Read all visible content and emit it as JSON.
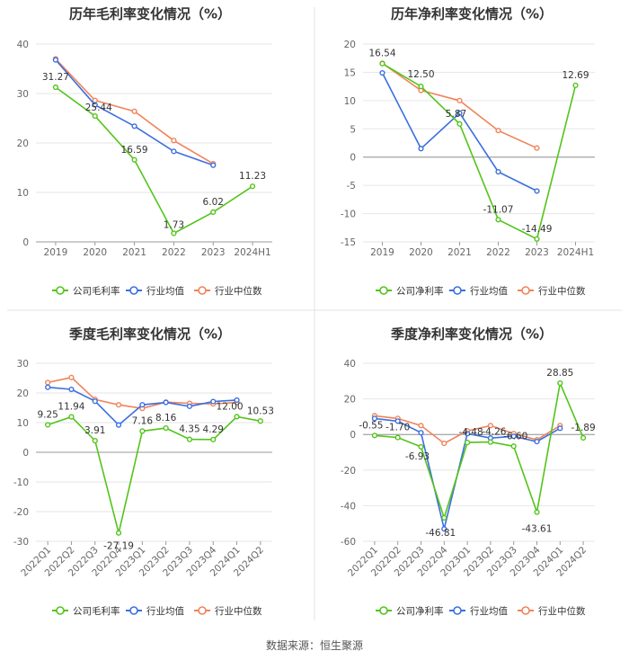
{
  "colors": {
    "company": "#52c41a",
    "avg": "#3b6fe0",
    "median": "#f0835a",
    "grid": "#e6e6e6",
    "axis": "#999999",
    "divider": "#e3e3e3"
  },
  "source": "数据来源：恒生聚源",
  "legend": {
    "gross": [
      "公司毛利率",
      "行业均值",
      "行业中位数"
    ],
    "net": [
      "公司净利率",
      "行业均值",
      "行业中位数"
    ]
  },
  "chart_data": [
    {
      "type": "line",
      "title": "历年毛利率变化情况（%）",
      "categories": [
        "2019",
        "2020",
        "2021",
        "2022",
        "2023",
        "2024H1"
      ],
      "ylim": [
        0,
        40
      ],
      "yticks": [
        0,
        10,
        20,
        30,
        40
      ],
      "series": [
        {
          "name": "公司毛利率",
          "values": [
            31.27,
            25.44,
            16.59,
            1.73,
            6.02,
            11.23
          ],
          "labels": [
            "31.27",
            "25.44",
            "16.59",
            "1.73",
            "6.02",
            "11.23"
          ]
        },
        {
          "name": "行业均值",
          "values": [
            36.8,
            27.7,
            23.4,
            18.3,
            15.5,
            null
          ]
        },
        {
          "name": "行业中位数",
          "values": [
            37.0,
            28.6,
            26.4,
            20.5,
            15.8,
            null
          ]
        }
      ]
    },
    {
      "type": "line",
      "title": "历年净利率变化情况（%）",
      "categories": [
        "2019",
        "2020",
        "2021",
        "2022",
        "2023",
        "2024H1"
      ],
      "ylim": [
        -15,
        20
      ],
      "yticks": [
        -15,
        -10,
        -5,
        0,
        5,
        10,
        15,
        20
      ],
      "series": [
        {
          "name": "公司净利率",
          "values": [
            16.54,
            12.5,
            5.87,
            -11.07,
            -14.49,
            12.69
          ],
          "labels": [
            "16.54",
            "12.50",
            "5.87",
            "-11.07",
            "-14.49",
            "12.69"
          ]
        },
        {
          "name": "行业均值",
          "values": [
            14.9,
            1.5,
            7.8,
            -2.6,
            -6.0,
            null
          ]
        },
        {
          "name": "行业中位数",
          "values": [
            16.6,
            11.8,
            10.0,
            4.7,
            1.6,
            null
          ]
        }
      ]
    },
    {
      "type": "line",
      "title": "季度毛利率变化情况（%）",
      "categories": [
        "2022Q1",
        "2022Q2",
        "2022Q3",
        "2022Q4",
        "2023Q1",
        "2023Q2",
        "2023Q3",
        "2023Q4",
        "2024Q1",
        "2024Q2"
      ],
      "ylim": [
        -30,
        30
      ],
      "yticks": [
        -30,
        -20,
        -10,
        0,
        10,
        20,
        30
      ],
      "series": [
        {
          "name": "公司毛利率",
          "values": [
            9.25,
            11.94,
            3.91,
            -27.19,
            7.16,
            8.16,
            4.35,
            4.29,
            12.0,
            10.53
          ],
          "labels": [
            "9.25",
            "11.94",
            "3.91",
            "-27.19",
            "7.16",
            "8.16",
            "4.35",
            "4.29",
            "12.00",
            "10.53"
          ]
        },
        {
          "name": "行业均值",
          "values": [
            21.9,
            21.2,
            17.2,
            9.2,
            16.0,
            16.8,
            15.5,
            17.1,
            17.6,
            null
          ]
        },
        {
          "name": "行业中位数",
          "values": [
            23.5,
            25.2,
            17.8,
            16.0,
            14.8,
            16.9,
            16.5,
            16.3,
            16.8,
            null
          ]
        }
      ]
    },
    {
      "type": "line",
      "title": "季度净利率变化情况（%）",
      "categories": [
        "2022Q1",
        "2022Q2",
        "2022Q3",
        "2022Q4",
        "2023Q1",
        "2023Q2",
        "2023Q3",
        "2023Q4",
        "2024Q1",
        "2024Q2"
      ],
      "ylim": [
        -60,
        40
      ],
      "yticks": [
        -60,
        -40,
        -20,
        0,
        20,
        40
      ],
      "series": [
        {
          "name": "公司净利率",
          "values": [
            -0.55,
            -1.7,
            -6.93,
            -46.81,
            -4.48,
            -4.26,
            -6.6,
            -43.61,
            28.85,
            -1.89
          ],
          "labels": [
            "-0.55",
            "-1.70",
            "-6.93",
            "-46.81",
            "-4.48",
            "-4.26",
            "-6.60",
            "-43.61",
            "28.85",
            "-1.89"
          ]
        },
        {
          "name": "行业均值",
          "values": [
            9.0,
            7.5,
            1.0,
            -53.0,
            0.5,
            -2.0,
            -1.0,
            -4.0,
            3.5,
            null
          ]
        },
        {
          "name": "行业中位数",
          "values": [
            10.5,
            9.0,
            5.0,
            -5.0,
            2.0,
            5.0,
            0.5,
            -3.0,
            5.0,
            null
          ]
        }
      ]
    }
  ]
}
